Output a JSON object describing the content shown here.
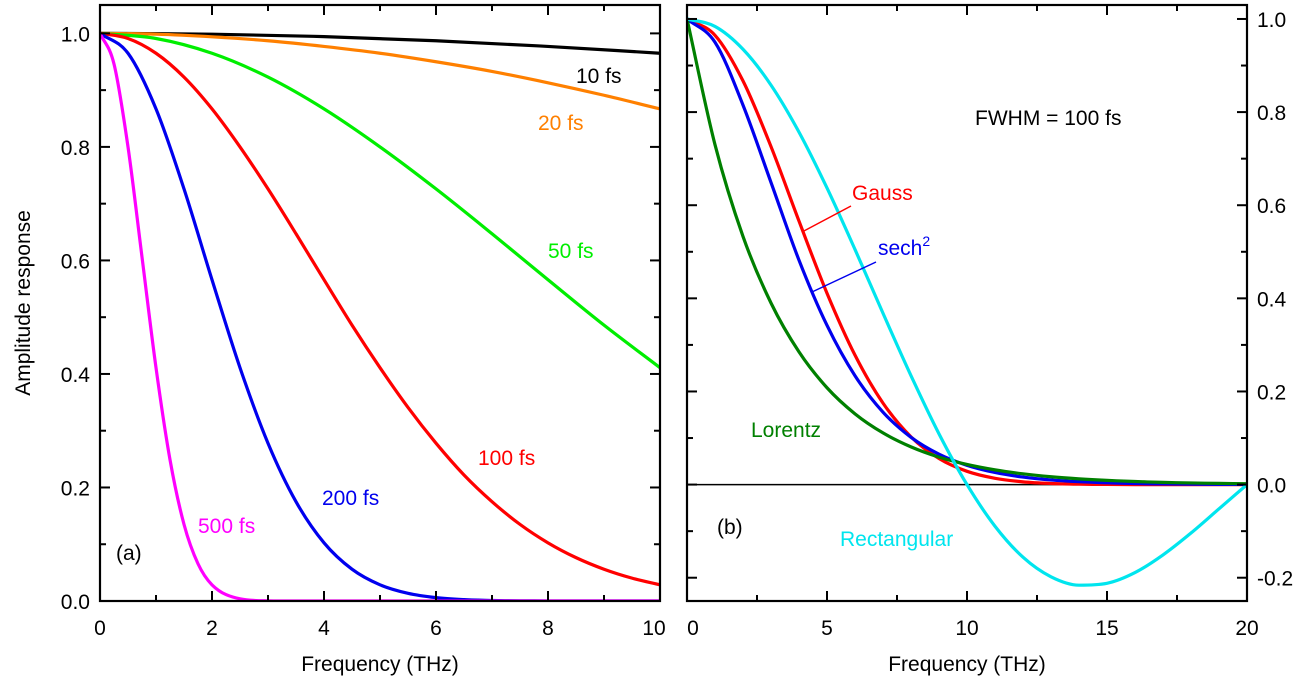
{
  "chart_data": [
    {
      "type": "line",
      "panel_label": "(a)",
      "xlabel": "Frequency (THz)",
      "ylabel": "Amplitude response",
      "xlim": [
        0,
        10
      ],
      "ylim": [
        0,
        1.05
      ],
      "xticks": [
        "0",
        "2",
        "4",
        "6",
        "8",
        "10"
      ],
      "yticks": [
        "0.0",
        "0.2",
        "0.4",
        "0.6",
        "0.8",
        "1.0"
      ],
      "grid": false,
      "series": [
        {
          "name": "10 fs",
          "color": "#000000",
          "x": [
            0,
            2,
            4,
            6,
            8,
            10
          ],
          "y": [
            1,
            0.9986,
            0.9943,
            0.987,
            0.977,
            0.965
          ]
        },
        {
          "name": "20 fs",
          "color": "#ff8000",
          "x": [
            0,
            1,
            2,
            3,
            4,
            5,
            6,
            7,
            8,
            9,
            10
          ],
          "y": [
            1,
            0.9986,
            0.994,
            0.987,
            0.977,
            0.965,
            0.95,
            0.933,
            0.913,
            0.891,
            0.867
          ]
        },
        {
          "name": "50 fs",
          "color": "#00ee00",
          "x": [
            0,
            1,
            2,
            3,
            4,
            5,
            6,
            7,
            8,
            9,
            10
          ],
          "y": [
            1,
            0.991,
            0.965,
            0.923,
            0.867,
            0.8,
            0.726,
            0.647,
            0.566,
            0.486,
            0.411
          ]
        },
        {
          "name": "100 fs",
          "color": "#ff0000",
          "x": [
            0,
            0.5,
            1,
            1.5,
            2,
            2.5,
            3,
            3.5,
            4,
            4.5,
            5,
            5.5,
            6,
            6.5,
            7,
            7.5,
            8,
            8.5,
            9,
            9.5,
            10
          ],
          "y": [
            1,
            0.991,
            0.965,
            0.923,
            0.867,
            0.8,
            0.726,
            0.647,
            0.566,
            0.486,
            0.411,
            0.341,
            0.278,
            0.222,
            0.175,
            0.135,
            0.1025,
            0.0764,
            0.056,
            0.0403,
            0.0285
          ]
        },
        {
          "name": "200 fs",
          "color": "#0000ee",
          "x": [
            0,
            0.5,
            1,
            1.5,
            2,
            2.5,
            3,
            3.5,
            4,
            4.5,
            5,
            5.5,
            6,
            6.5,
            7,
            7.5,
            8,
            9,
            10
          ],
          "y": [
            1,
            0.965,
            0.867,
            0.726,
            0.566,
            0.411,
            0.278,
            0.175,
            0.1025,
            0.056,
            0.0285,
            0.0135,
            0.0059,
            0.0024,
            0.0009,
            0.0003,
            0.0001,
            0,
            0
          ]
        },
        {
          "name": "500 fs",
          "color": "#ff00ff",
          "x": [
            0,
            0.25,
            0.5,
            0.75,
            1,
            1.25,
            1.5,
            1.75,
            2,
            2.5,
            3,
            3.5,
            4,
            10
          ],
          "y": [
            1,
            0.946,
            0.8,
            0.606,
            0.411,
            0.249,
            0.135,
            0.0656,
            0.0285,
            0.0038,
            0.0003,
            0,
            0,
            0
          ]
        }
      ]
    },
    {
      "type": "line",
      "panel_label": "(b)",
      "annotation": "FWHM = 100 fs",
      "xlabel": "Frequency (THz)",
      "xlim": [
        0,
        20
      ],
      "ylim": [
        -0.25,
        1.03
      ],
      "xticks": [
        "0",
        "5",
        "10",
        "15",
        "20"
      ],
      "yticks": [
        "-0.2",
        "0.0",
        "0.2",
        "0.4",
        "0.6",
        "0.8",
        "1.0"
      ],
      "y_axis_side": "right",
      "zero_line": true,
      "grid": false,
      "series": [
        {
          "name": "Gauss",
          "color": "#ff0000",
          "x": [
            0,
            1,
            2,
            3,
            4,
            5,
            6,
            7,
            8,
            9,
            10,
            11,
            12,
            13,
            14,
            15,
            16,
            20
          ],
          "y": [
            1,
            0.965,
            0.867,
            0.726,
            0.566,
            0.411,
            0.278,
            0.175,
            0.1025,
            0.056,
            0.0285,
            0.0135,
            0.0059,
            0.0024,
            0.0009,
            0.0003,
            0,
            0
          ]
        },
        {
          "name": "sech",
          "name_superscript": "2",
          "color": "#0000ee",
          "x": [
            0,
            1,
            2,
            3,
            4,
            5,
            6,
            7,
            8,
            9,
            10,
            11,
            12,
            13,
            14,
            15,
            16,
            17,
            18,
            19,
            20
          ],
          "y": [
            1,
            0.95,
            0.815,
            0.649,
            0.482,
            0.342,
            0.2337,
            0.1556,
            0.1016,
            0.0653,
            0.0414,
            0.026,
            0.0162,
            0.01,
            0.0062,
            0.0038,
            0.0023,
            0.0014,
            0.0009,
            0.0005,
            0.0003
          ]
        },
        {
          "name": "Lorentz",
          "color": "#008000",
          "x": [
            0,
            1,
            2,
            3,
            4,
            5,
            6,
            7,
            8,
            9,
            10,
            11,
            12,
            13,
            14,
            15,
            16,
            17,
            18,
            19,
            20
          ],
          "y": [
            1,
            0.73,
            0.533,
            0.39,
            0.285,
            0.208,
            0.152,
            0.111,
            0.081,
            0.059,
            0.0432,
            0.0316,
            0.0231,
            0.0168,
            0.0123,
            0.009,
            0.0066,
            0.0048,
            0.0035,
            0.0026,
            0.0019
          ]
        },
        {
          "name": "Rectangular",
          "color": "#00e5ee",
          "x": [
            0,
            1,
            2,
            3,
            4,
            5,
            6,
            7,
            8,
            9,
            10,
            11,
            12,
            13,
            14,
            15,
            16,
            17,
            18,
            19,
            20
          ],
          "y": [
            1,
            0.984,
            0.935,
            0.858,
            0.757,
            0.637,
            0.505,
            0.368,
            0.234,
            0.109,
            0,
            -0.0894,
            -0.156,
            -0.198,
            -0.216,
            -0.212,
            -0.189,
            -0.151,
            -0.104,
            -0.052,
            0
          ]
        }
      ]
    }
  ]
}
